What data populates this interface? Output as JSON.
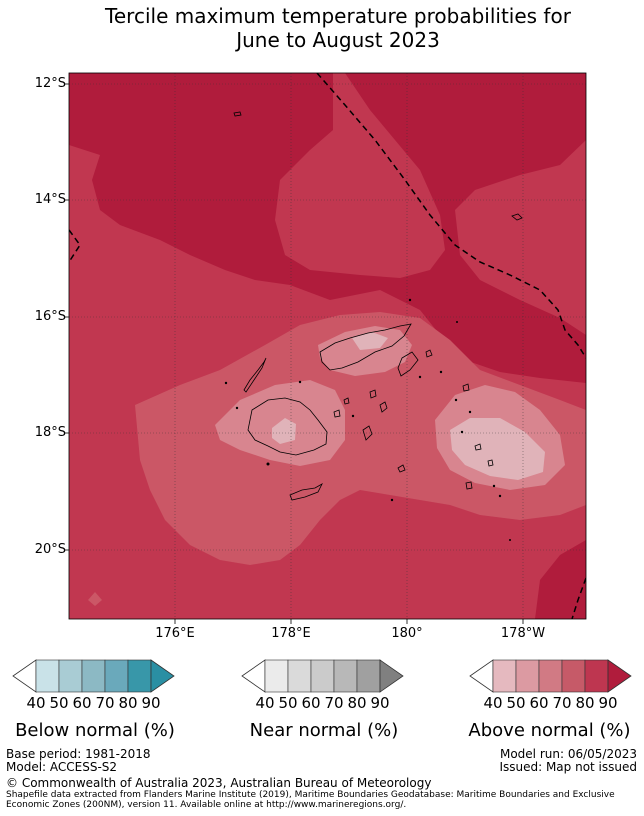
{
  "title": {
    "line1": "Tercile maximum temperature probabilities for",
    "line2": "June to August 2023"
  },
  "axes": {
    "lat_labels": [
      "12°S",
      "14°S",
      "16°S",
      "18°S",
      "20°S"
    ],
    "lon_labels": [
      "176°E",
      "178°E",
      "180°",
      "178°W"
    ]
  },
  "map": {
    "type": "heatmap",
    "lat_range": [
      "21.2°S",
      "11.8°S"
    ],
    "lon_range": [
      "174.2°E",
      "179.2°W"
    ],
    "grid": true,
    "colors": {
      "p90": "#b01c3c",
      "p80": "#c13750",
      "p70": "#cb5766",
      "p60": "#d8858f",
      "p50": "#e0b3b9",
      "land_outline": "#000000"
    },
    "features": [
      "EEZ boundary (dashed)",
      "Fiji islands coastline"
    ]
  },
  "colorbars": [
    {
      "name": "below",
      "title": "Below normal (%)",
      "ticks": [
        "40",
        "50",
        "60",
        "70",
        "80",
        "90"
      ],
      "colors": [
        "#c9e2e8",
        "#a9ccd4",
        "#8cb9c4",
        "#6aa9bb",
        "#3897a9",
        "#2a8fa3"
      ]
    },
    {
      "name": "near",
      "title": "Near normal (%)",
      "ticks": [
        "40",
        "50",
        "60",
        "70",
        "80",
        "90"
      ],
      "colors": [
        "#ebebeb",
        "#dadada",
        "#cbcbcb",
        "#b8b8b8",
        "#a0a0a0",
        "#808080"
      ]
    },
    {
      "name": "above",
      "title": "Above normal (%)",
      "ticks": [
        "40",
        "50",
        "60",
        "70",
        "80",
        "90"
      ],
      "colors": [
        "#e5b9bf",
        "#dc9aa2",
        "#d17a84",
        "#c65a68",
        "#be3650",
        "#b01c3c"
      ]
    }
  ],
  "footer": {
    "base_period": "Base period: 1981-2018",
    "model": "Model: ACCESS-S2",
    "model_run": "Model run: 06/05/2023",
    "issued": "Issued: Map not issued",
    "copyright": "© Commonwealth of Australia 2023, Australian Bureau of Meteorology",
    "shapefile_line1": "Shapefile data extracted from Flanders Marine Institute (2019), Maritime Boundaries Geodatabase: Maritime Boundaries and Exclusive",
    "shapefile_line2": "Economic Zones (200NM), version 11. Available online at http://www.marineregions.org/."
  }
}
